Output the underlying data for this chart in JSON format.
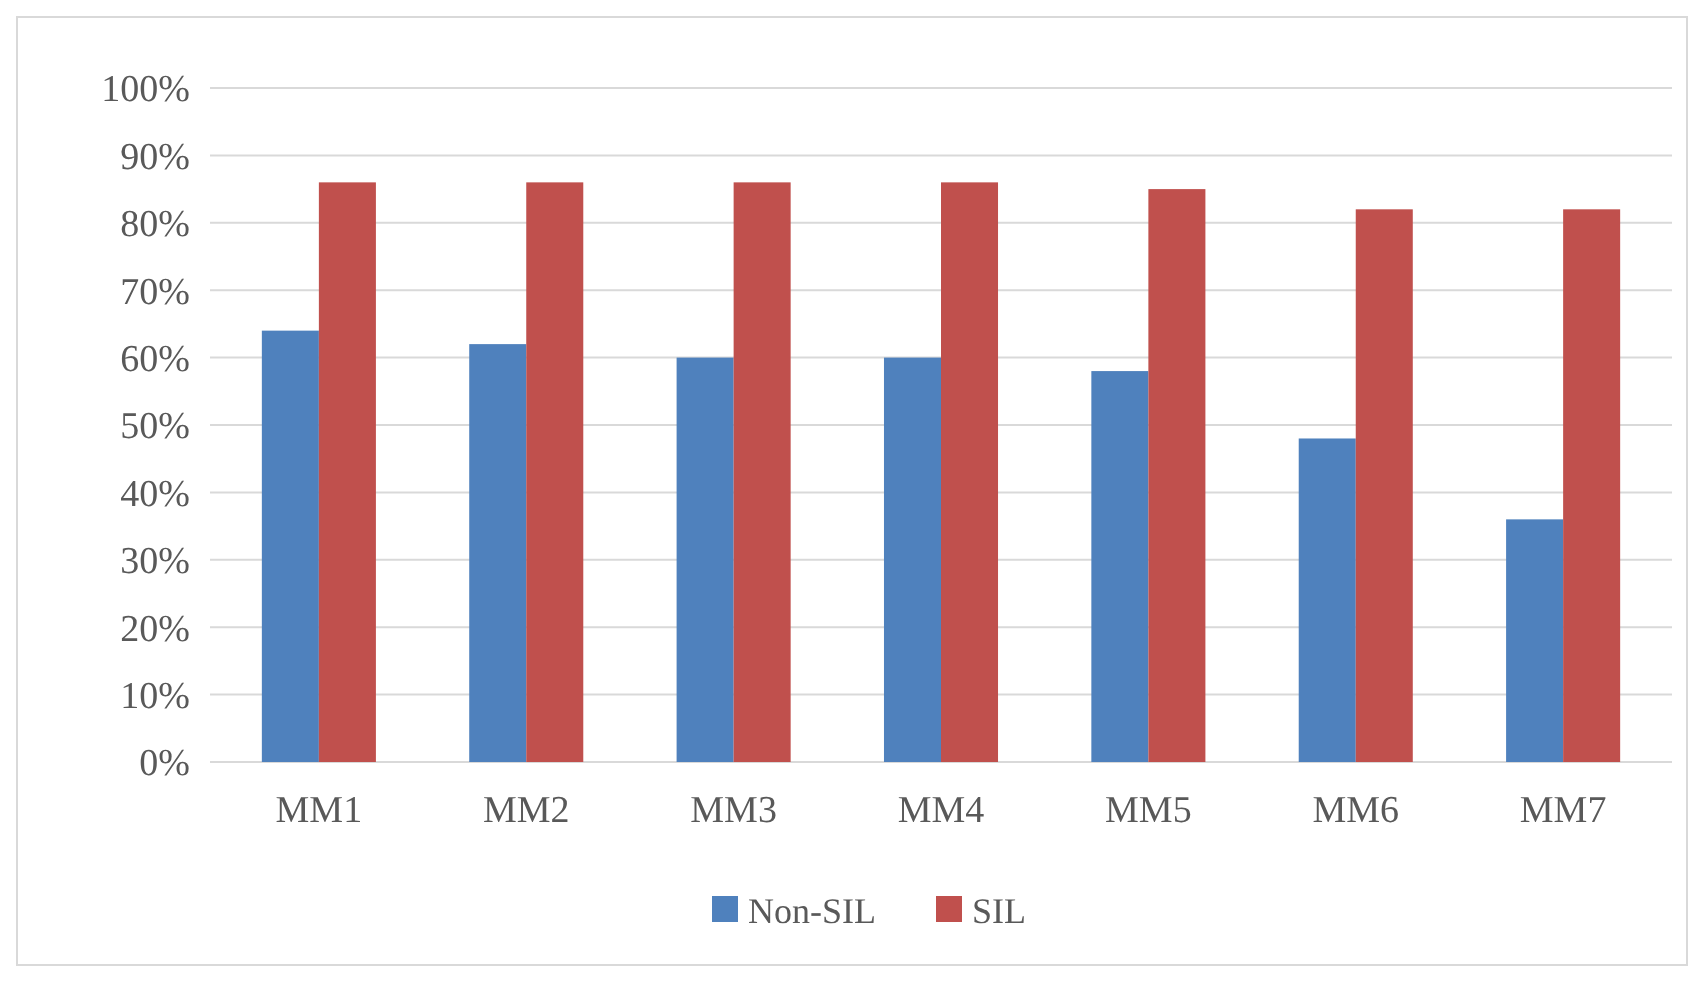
{
  "chart_data": {
    "type": "bar",
    "categories": [
      "MM1",
      "MM2",
      "MM3",
      "MM4",
      "MM5",
      "MM6",
      "MM7"
    ],
    "series": [
      {
        "name": "Non-SIL",
        "color": "#4f81bd",
        "values": [
          64,
          62,
          60,
          60,
          58,
          48,
          36
        ]
      },
      {
        "name": "SIL",
        "color": "#c0504d",
        "values": [
          86,
          86,
          86,
          86,
          85,
          82,
          82
        ]
      }
    ],
    "ylim": [
      0,
      100
    ],
    "yticks": [
      {
        "value": 0,
        "label": "0%"
      },
      {
        "value": 10,
        "label": "10%"
      },
      {
        "value": 20,
        "label": "20%"
      },
      {
        "value": 30,
        "label": "30%"
      },
      {
        "value": 40,
        "label": "40%"
      },
      {
        "value": 50,
        "label": "50%"
      },
      {
        "value": 60,
        "label": "60%"
      },
      {
        "value": 70,
        "label": "70%"
      },
      {
        "value": 80,
        "label": "80%"
      },
      {
        "value": 90,
        "label": "90%"
      },
      {
        "value": 100,
        "label": "100%"
      }
    ],
    "grid": "y",
    "legend": "bottom"
  }
}
